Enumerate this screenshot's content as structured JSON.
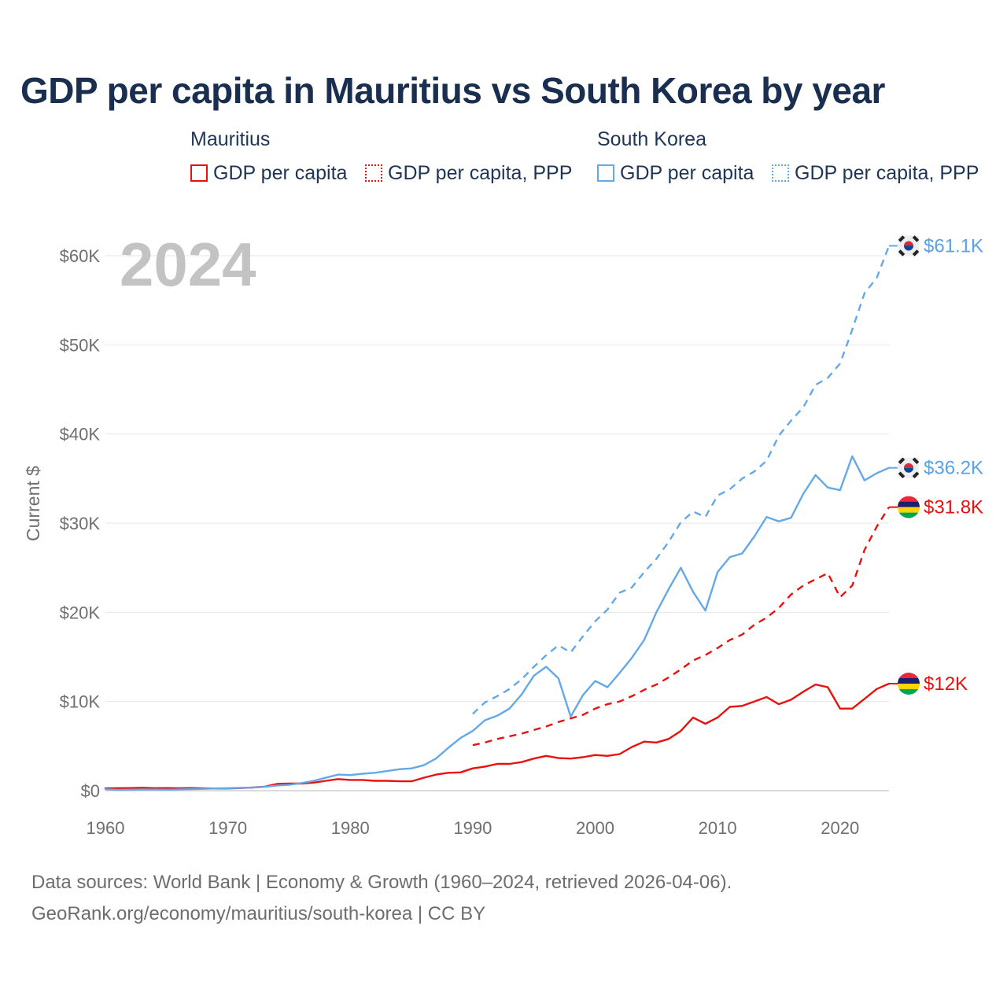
{
  "chart_data": {
    "type": "line",
    "title": "GDP per capita in Mauritius vs South Korea by year",
    "ylabel": "Current $",
    "xlabel": "",
    "year_label": "2024",
    "xlim": [
      1960,
      2024
    ],
    "ylim": [
      0,
      60000
    ],
    "x_ticks": [
      1960,
      1970,
      1980,
      1990,
      2000,
      2010,
      2020
    ],
    "x_tick_labels": [
      "1960",
      "1970",
      "1980",
      "1990",
      "2000",
      "2010",
      "2020"
    ],
    "y_ticks": [
      0,
      10000,
      20000,
      30000,
      40000,
      50000,
      60000
    ],
    "y_tick_labels": [
      "$0",
      "$10K",
      "$20K",
      "$30K",
      "$40K",
      "$50K",
      "$60K"
    ],
    "grid": true,
    "legend": {
      "groups": [
        {
          "country": "Mauritius",
          "items": [
            "GDP per capita",
            "GDP per capita, PPP"
          ]
        },
        {
          "country": "South Korea",
          "items": [
            "GDP per capita",
            "GDP per capita, PPP"
          ]
        }
      ]
    },
    "series": [
      {
        "name": "Mauritius GDP per capita",
        "country": "Mauritius",
        "metric": "GDP per capita",
        "color": "#e8110f",
        "dashed": false,
        "end_label": "$12K",
        "x": [
          1960,
          1961,
          1962,
          1963,
          1964,
          1965,
          1966,
          1967,
          1968,
          1969,
          1970,
          1971,
          1972,
          1973,
          1974,
          1975,
          1976,
          1977,
          1978,
          1979,
          1980,
          1981,
          1982,
          1983,
          1984,
          1985,
          1986,
          1987,
          1988,
          1989,
          1990,
          1991,
          1992,
          1993,
          1994,
          1995,
          1996,
          1997,
          1998,
          1999,
          2000,
          2001,
          2002,
          2003,
          2004,
          2005,
          2006,
          2007,
          2008,
          2009,
          2010,
          2011,
          2012,
          2013,
          2014,
          2015,
          2016,
          2017,
          2018,
          2019,
          2020,
          2021,
          2022,
          2023,
          2024
        ],
        "values": [
          260,
          280,
          290,
          330,
          280,
          290,
          270,
          290,
          260,
          240,
          250,
          290,
          350,
          450,
          750,
          800,
          790,
          900,
          1100,
          1300,
          1200,
          1200,
          1100,
          1100,
          1050,
          1050,
          1450,
          1800,
          2000,
          2050,
          2500,
          2700,
          3000,
          3000,
          3200,
          3600,
          3900,
          3650,
          3600,
          3750,
          4000,
          3900,
          4100,
          4900,
          5500,
          5400,
          5800,
          6700,
          8200,
          7500,
          8200,
          9400,
          9500,
          10000,
          10500,
          9700,
          10200,
          11100,
          11900,
          11600,
          9200,
          9200,
          10300,
          11400,
          12000
        ]
      },
      {
        "name": "Mauritius GDP per capita, PPP",
        "country": "Mauritius",
        "metric": "GDP per capita, PPP",
        "color": "#e8110f",
        "dashed": true,
        "end_label": "$31.8K",
        "x": [
          1990,
          1991,
          1992,
          1993,
          1994,
          1995,
          1996,
          1997,
          1998,
          1999,
          2000,
          2001,
          2002,
          2003,
          2004,
          2005,
          2006,
          2007,
          2008,
          2009,
          2010,
          2011,
          2012,
          2013,
          2014,
          2015,
          2016,
          2017,
          2018,
          2019,
          2020,
          2021,
          2022,
          2023,
          2024
        ],
        "values": [
          5100,
          5400,
          5800,
          6100,
          6400,
          6800,
          7200,
          7700,
          8100,
          8500,
          9200,
          9700,
          10000,
          10600,
          11300,
          11900,
          12700,
          13600,
          14600,
          15200,
          16000,
          16900,
          17500,
          18600,
          19400,
          20500,
          22000,
          23000,
          23700,
          24400,
          21700,
          23000,
          27000,
          29600,
          31800
        ]
      },
      {
        "name": "South Korea GDP per capita",
        "country": "South Korea",
        "metric": "GDP per capita",
        "color": "#65a8e8",
        "dashed": false,
        "end_label": "$36.2K",
        "x": [
          1960,
          1961,
          1962,
          1963,
          1964,
          1965,
          1966,
          1967,
          1968,
          1969,
          1970,
          1971,
          1972,
          1973,
          1974,
          1975,
          1976,
          1977,
          1978,
          1979,
          1980,
          1981,
          1982,
          1983,
          1984,
          1985,
          1986,
          1987,
          1988,
          1989,
          1990,
          1991,
          1992,
          1993,
          1994,
          1995,
          1996,
          1997,
          1998,
          1999,
          2000,
          2001,
          2002,
          2003,
          2004,
          2005,
          2006,
          2007,
          2008,
          2009,
          2010,
          2011,
          2012,
          2013,
          2014,
          2015,
          2016,
          2017,
          2018,
          2019,
          2020,
          2021,
          2022,
          2023,
          2024
        ],
        "values": [
          160,
          95,
          105,
          145,
          125,
          110,
          135,
          165,
          200,
          250,
          280,
          320,
          340,
          420,
          580,
          650,
          850,
          1100,
          1450,
          1800,
          1750,
          1900,
          2000,
          2200,
          2400,
          2500,
          2850,
          3600,
          4800,
          5900,
          6700,
          7900,
          8400,
          9200,
          10800,
          12900,
          13900,
          12600,
          8300,
          10700,
          12300,
          11600,
          13200,
          14900,
          16900,
          20000,
          22600,
          25000,
          22300,
          20200,
          24500,
          26200,
          26600,
          28500,
          30700,
          30200,
          30600,
          33300,
          35400,
          34000,
          33700,
          37500,
          34800,
          35600,
          36200
        ]
      },
      {
        "name": "South Korea GDP per capita, PPP",
        "country": "South Korea",
        "metric": "GDP per capita, PPP",
        "color": "#65a8e8",
        "dashed": true,
        "end_label": "$61.1K",
        "x": [
          1990,
          1991,
          1992,
          1993,
          1994,
          1995,
          1996,
          1997,
          1998,
          1999,
          2000,
          2001,
          2002,
          2003,
          2004,
          2005,
          2006,
          2007,
          2008,
          2009,
          2010,
          2011,
          2012,
          2013,
          2014,
          2015,
          2016,
          2017,
          2018,
          2019,
          2020,
          2021,
          2022,
          2023,
          2024
        ],
        "values": [
          8600,
          9900,
          10600,
          11400,
          12500,
          13900,
          15200,
          16300,
          15500,
          17300,
          19000,
          20300,
          22200,
          22800,
          24500,
          26000,
          27900,
          30100,
          31300,
          30700,
          33100,
          33800,
          35000,
          35800,
          37000,
          39800,
          41500,
          43000,
          45500,
          46300,
          47900,
          51700,
          55800,
          57500,
          61100
        ]
      }
    ]
  },
  "footer": {
    "line1": "Data sources: World Bank | Economy & Growth (1960–2024, retrieved 2026-04-06).",
    "line2": "GeoRank.org/economy/mauritius/south-korea | CC BY"
  }
}
